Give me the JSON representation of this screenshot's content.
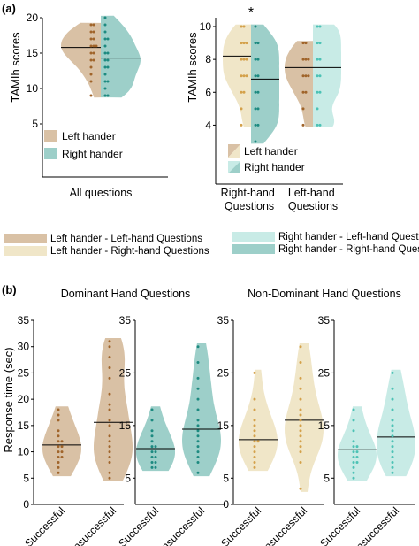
{
  "panel_labels": {
    "a": "(a)",
    "b": "(b)"
  },
  "colors": {
    "left_left": "#d9c1a5",
    "left_right": "#f0e6c8",
    "right_left": "#c8ebe6",
    "right_right": "#9dcfc9",
    "left_dot": "#a0642a",
    "left_dot_light": "#d4a14a",
    "right_dot": "#1d8a80",
    "right_dot_light": "#4cc2b5"
  },
  "legend_bottom": {
    "left_left": "Left hander - Left-hand Questions",
    "left_right": "Left hander - Right-hand Questions",
    "right_left": "Right hander - Left-hand Questions",
    "right_right": "Right hander - Right-hand Questions"
  },
  "chart_data": [
    {
      "id": "a1",
      "type": "violin",
      "ylabel": "TAMIh scores",
      "ylim": [
        5,
        20
      ],
      "yticks": [
        5,
        10,
        15,
        20
      ],
      "categories": [
        "All questions"
      ],
      "legend": [
        "Left hander",
        "Right hander"
      ],
      "series": [
        {
          "name": "Left hander",
          "mean": 15.8,
          "values": [
            19,
            19,
            18,
            18,
            17,
            17,
            16,
            16,
            16,
            15,
            15,
            14,
            14,
            13,
            12,
            11,
            9
          ]
        },
        {
          "name": "Right hander",
          "mean": 14.3,
          "values": [
            20,
            19,
            18,
            17,
            17,
            16,
            15,
            15,
            14,
            14,
            13,
            13,
            12,
            11,
            11,
            10,
            9,
            9
          ]
        }
      ]
    },
    {
      "id": "a2",
      "type": "violin",
      "ylabel": "TAMIh scores",
      "ylim": [
        3,
        10
      ],
      "yticks": [
        4,
        6,
        8,
        10
      ],
      "categories": [
        "Right-hand Questions",
        "Left-hand Questions"
      ],
      "annotation": "*",
      "legend": [
        "Left hander",
        "Right hander"
      ],
      "series": [
        {
          "name": "Left hander",
          "mean": 8.2,
          "values": [
            10,
            10,
            9,
            9,
            9,
            8,
            8,
            8,
            7,
            7,
            7,
            6,
            6,
            5,
            4
          ]
        },
        {
          "name": "Right hander",
          "mean": 6.8,
          "values": [
            10,
            9,
            9,
            8,
            8,
            7,
            7,
            6,
            6,
            5,
            5,
            4,
            4,
            3
          ]
        },
        {
          "name": "Left hander",
          "mean": 7.5,
          "values": [
            9,
            9,
            8,
            8,
            8,
            7,
            7,
            7,
            6,
            6,
            5,
            4
          ]
        },
        {
          "name": "Right hander",
          "mean": 7.5,
          "values": [
            10,
            10,
            9,
            9,
            8,
            8,
            7,
            7,
            6,
            6,
            5,
            4,
            4
          ]
        }
      ]
    },
    {
      "id": "b",
      "type": "violin",
      "ylabel": "Response time (sec)",
      "ylim": [
        0,
        35
      ],
      "group_titles": [
        "Dominant Hand Questions",
        "Non-Dominant Hand Questions"
      ],
      "categories": [
        "Successful",
        "Unsuccessful"
      ],
      "panels": [
        {
          "yticks": [
            0,
            5,
            10,
            15,
            20,
            25,
            30,
            35
          ],
          "series": [
            {
              "name": "Successful",
              "mean": 11.3,
              "values": [
                18,
                17,
                16,
                14,
                13,
                12,
                12,
                11,
                11,
                10,
                10,
                9,
                9,
                8,
                7,
                6
              ]
            },
            {
              "name": "Unsuccessful",
              "mean": 15.6,
              "values": [
                31,
                30,
                28,
                26,
                24,
                21,
                19,
                18,
                16,
                15,
                13,
                12,
                11,
                10,
                9,
                8,
                6,
                5
              ]
            }
          ]
        },
        {
          "yticks": [
            5,
            15,
            25,
            35
          ],
          "series": [
            {
              "name": "Successful",
              "mean": 10.6,
              "values": [
                18,
                16,
                14,
                13,
                12,
                11,
                11,
                10,
                10,
                9,
                9,
                8,
                8,
                7,
                7
              ]
            },
            {
              "name": "Unsuccessful",
              "mean": 14.3,
              "values": [
                30,
                27,
                24,
                22,
                20,
                18,
                16,
                15,
                14,
                13,
                12,
                11,
                10,
                9,
                8,
                6
              ]
            }
          ]
        },
        {
          "yticks": [
            0,
            5,
            15,
            25,
            35
          ],
          "series": [
            {
              "name": "Successful",
              "mean": 12.3,
              "values": [
                25,
                20,
                18,
                16,
                15,
                14,
                13,
                12,
                12,
                11,
                10,
                9,
                8,
                7
              ]
            },
            {
              "name": "Unsuccessful",
              "mean": 16,
              "values": [
                30,
                27,
                24,
                22,
                20,
                18,
                17,
                16,
                15,
                14,
                13,
                12,
                11,
                10,
                8,
                3
              ]
            }
          ]
        },
        {
          "yticks": [
            5,
            15,
            25,
            35
          ],
          "series": [
            {
              "name": "Successful",
              "mean": 10.4,
              "values": [
                18,
                16,
                14,
                12,
                11,
                11,
                10,
                10,
                9,
                9,
                8,
                8,
                7,
                6,
                5
              ]
            },
            {
              "name": "Unsuccessful",
              "mean": 12.8,
              "values": [
                25,
                22,
                20,
                18,
                16,
                15,
                14,
                13,
                12,
                11,
                10,
                9,
                8,
                7,
                6
              ]
            }
          ]
        }
      ]
    }
  ]
}
